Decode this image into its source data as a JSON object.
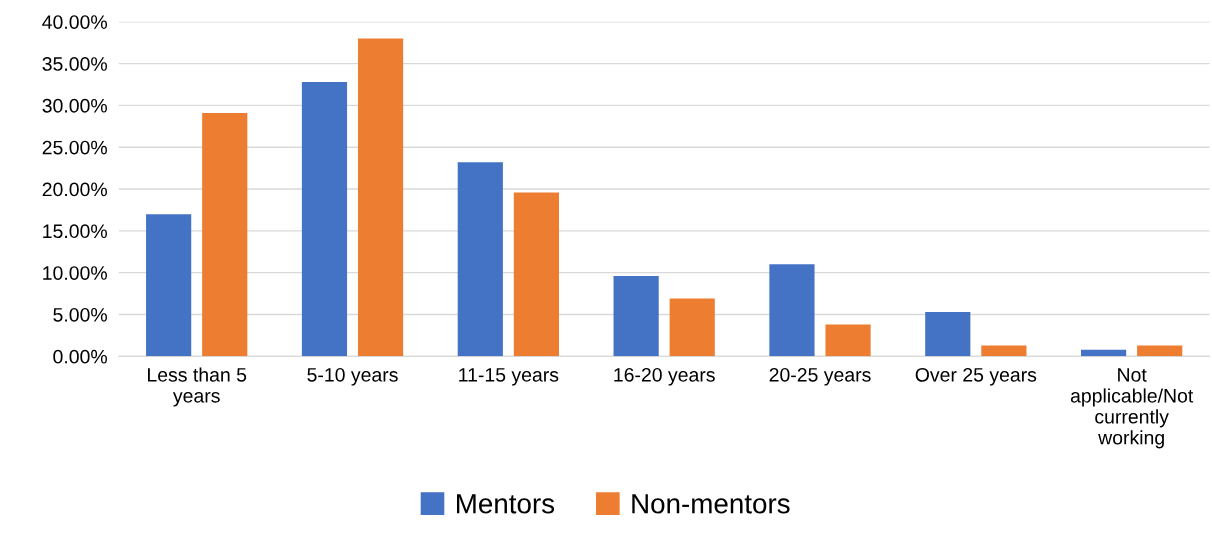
{
  "chart_data": {
    "type": "bar",
    "categories": [
      "Less than 5\nyears",
      "5-10 years",
      "11-15 years",
      "16-20 years",
      "20-25 years",
      "Over 25 years",
      "Not\napplicable/Not\ncurrently\nworking"
    ],
    "series": [
      {
        "name": "Mentors",
        "color": "#4472c4",
        "values": [
          17.0,
          32.8,
          23.2,
          9.6,
          11.0,
          5.3,
          0.8
        ]
      },
      {
        "name": "Non-mentors",
        "color": "#ed7d31",
        "values": [
          29.1,
          38.0,
          19.6,
          6.9,
          3.8,
          1.3,
          1.3
        ]
      }
    ],
    "ylim": [
      0,
      40
    ],
    "yticks": [
      {
        "value": 0,
        "label": "0.00%"
      },
      {
        "value": 5,
        "label": "5.00%"
      },
      {
        "value": 10,
        "label": "10.00%"
      },
      {
        "value": 15,
        "label": "15.00%"
      },
      {
        "value": 20,
        "label": "20.00%"
      },
      {
        "value": 25,
        "label": "25.00%"
      },
      {
        "value": 30,
        "label": "30.00%"
      },
      {
        "value": 35,
        "label": "35.00%"
      },
      {
        "value": 40,
        "label": "40.00%"
      }
    ],
    "grid": "y",
    "legend": "bottom"
  }
}
